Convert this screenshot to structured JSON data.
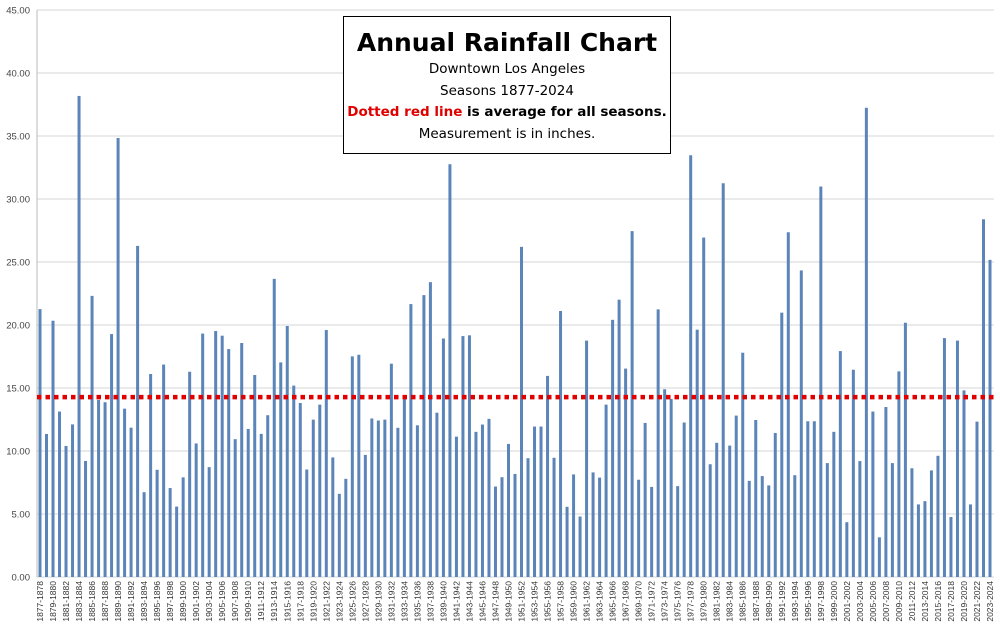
{
  "chart_data": {
    "type": "bar",
    "title": "Annual Rainfall Chart",
    "subtitle_lines": [
      "Downtown Los Angeles",
      "Seasons  1877-2024"
    ],
    "note_red": "Dotted red line",
    "note_rest": " is average for all seasons.",
    "measurement_note": "Measurement  is in inches.",
    "ylim": [
      0,
      45
    ],
    "yticks": [
      "0.00",
      "5.00",
      "10.00",
      "15.00",
      "20.00",
      "25.00",
      "30.00",
      "35.00",
      "40.00",
      "45.00"
    ],
    "grid": true,
    "average": 14.28,
    "colors": {
      "bar": "#5b84b8",
      "average_line": "#e00000",
      "grid": "#d4d4d4"
    },
    "categories": [
      "1877-1878",
      "1878-1879",
      "1879-1880",
      "1880-1881",
      "1881-1882",
      "1882-1883",
      "1883-1884",
      "1884-1885",
      "1885-1886",
      "1886-1887",
      "1887-1888",
      "1888-1889",
      "1889-1890",
      "1890-1891",
      "1891-1892",
      "1892-1893",
      "1893-1894",
      "1894-1895",
      "1895-1896",
      "1896-1897",
      "1897-1898",
      "1898-1899",
      "1899-1900",
      "1900-1901",
      "1901-1902",
      "1902-1903",
      "1903-1904",
      "1904-1905",
      "1905-1906",
      "1906-1907",
      "1907-1908",
      "1908-1909",
      "1909-1910",
      "1910-1911",
      "1911-1912",
      "1912-1913",
      "1913-1914",
      "1914-1915",
      "1915-1916",
      "1916-1917",
      "1917-1918",
      "1918-1919",
      "1919-1920",
      "1920-1921",
      "1921-1922",
      "1922-1923",
      "1923-1924",
      "1924-1925",
      "1925-1926",
      "1926-1927",
      "1927-1928",
      "1928-1929",
      "1929-1930",
      "1930-1931",
      "1931-1932",
      "1932-1933",
      "1933-1934",
      "1934-1935",
      "1935-1936",
      "1936-1937",
      "1937-1938",
      "1938-1939",
      "1939-1940",
      "1940-1941",
      "1941-1942",
      "1942-1943",
      "1943-1944",
      "1944-1945",
      "1945-1946",
      "1946-1947",
      "1947-1948",
      "1948-1949",
      "1949-1950",
      "1950-1951",
      "1951-1952",
      "1952-1953",
      "1953-1954",
      "1954-1955",
      "1955-1956",
      "1956-1957",
      "1957-1958",
      "1958-1959",
      "1959-1960",
      "1960-1961",
      "1961-1962",
      "1962-1963",
      "1963-1964",
      "1964-1965",
      "1965-1966",
      "1966-1967",
      "1967-1968",
      "1968-1969",
      "1969-1970",
      "1970-1971",
      "1971-1972",
      "1972-1973",
      "1973-1974",
      "1974-1975",
      "1975-1976",
      "1976-1977",
      "1977-1978",
      "1978-1979",
      "1979-1980",
      "1980-1981",
      "1981-1982",
      "1982-1983",
      "1983-1984",
      "1984-1985",
      "1985-1986",
      "1986-1987",
      "1987-1988",
      "1988-1989",
      "1989-1990",
      "1990-1991",
      "1991-1992",
      "1992-1993",
      "1993-1994",
      "1994-1995",
      "1995-1996",
      "1996-1997",
      "1997-1998",
      "1998-1999",
      "1999-2000",
      "2000-2001",
      "2001-2002",
      "2002-2003",
      "2003-2004",
      "2004-2005",
      "2005-2006",
      "2006-2007",
      "2007-2008",
      "2008-2009",
      "2009-2010",
      "2010-2011",
      "2011-2012",
      "2012-2013",
      "2013-2014",
      "2014-2015",
      "2015-2016",
      "2016-2017",
      "2017-2018",
      "2018-2019",
      "2019-2020",
      "2020-2021",
      "2021-2022",
      "2022-2023",
      "2023-2024"
    ],
    "values": [
      21.26,
      11.35,
      20.34,
      13.13,
      10.4,
      12.11,
      38.18,
      9.21,
      22.31,
      14.05,
      13.87,
      19.28,
      34.84,
      13.36,
      11.85,
      26.28,
      6.73,
      16.11,
      8.51,
      16.86,
      7.06,
      5.59,
      7.91,
      16.29,
      10.6,
      19.32,
      8.72,
      19.52,
      19.15,
      18.09,
      10.94,
      18.57,
      11.75,
      16.03,
      11.36,
      12.84,
      23.66,
      17.03,
      19.92,
      15.19,
      13.81,
      8.53,
      12.49,
      13.68,
      19.6,
      9.49,
      6.6,
      7.79,
      17.51,
      17.64,
      9.69,
      12.58,
      12.42,
      12.49,
      16.93,
      11.84,
      14.16,
      21.66,
      12.04,
      22.37,
      23.4,
      13.04,
      18.93,
      32.76,
      11.14,
      19.12,
      19.18,
      11.52,
      12.1,
      12.55,
      7.18,
      7.92,
      10.56,
      8.18,
      26.2,
      9.43,
      11.94,
      11.94,
      15.96,
      9.46,
      21.11,
      5.57,
      8.14,
      4.8,
      18.76,
      8.3,
      7.89,
      13.68,
      20.41,
      22.01,
      16.54,
      27.45,
      7.72,
      12.23,
      7.15,
      21.24,
      14.9,
      14.13,
      7.21,
      12.26,
      33.47,
      19.63,
      26.94,
      8.95,
      10.65,
      31.25,
      10.43,
      12.81,
      17.8,
      7.63,
      12.46,
      8.01,
      7.27,
      11.43,
      20.98,
      27.36,
      8.08,
      24.33,
      12.36,
      12.36,
      30.99,
      9.04,
      11.52,
      17.93,
      4.35,
      16.45,
      9.2,
      37.24,
      13.13,
      3.15,
      13.49,
      9.04,
      16.32,
      20.18,
      8.63,
      5.76,
      6.02,
      8.46,
      9.62,
      18.96,
      4.76,
      18.76,
      14.81,
      5.76,
      12.33,
      28.39,
      25.17
    ]
  }
}
